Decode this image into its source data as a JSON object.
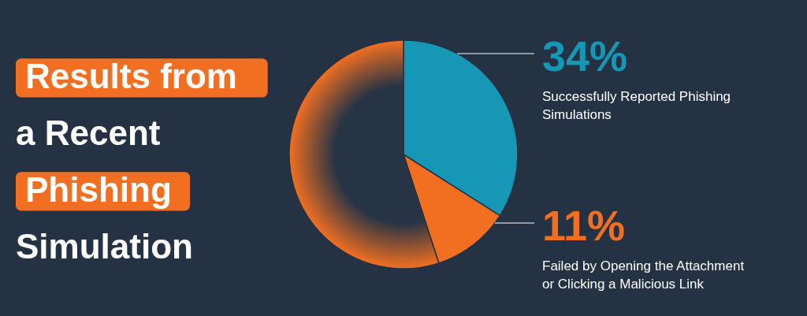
{
  "chart_data": {
    "type": "pie",
    "title": "Results from a Recent Phishing Simulation",
    "categories": [
      "Successfully Reported Phishing Simulations",
      "Failed by Opening the Attachment or Clicking a Malicious Link",
      null
    ],
    "values": [
      34,
      11,
      55
    ],
    "colors": [
      "#1597b5",
      "#f26f21",
      "#263445"
    ],
    "value_labels": [
      "34%",
      "11%",
      null
    ],
    "legend": false
  }
}
